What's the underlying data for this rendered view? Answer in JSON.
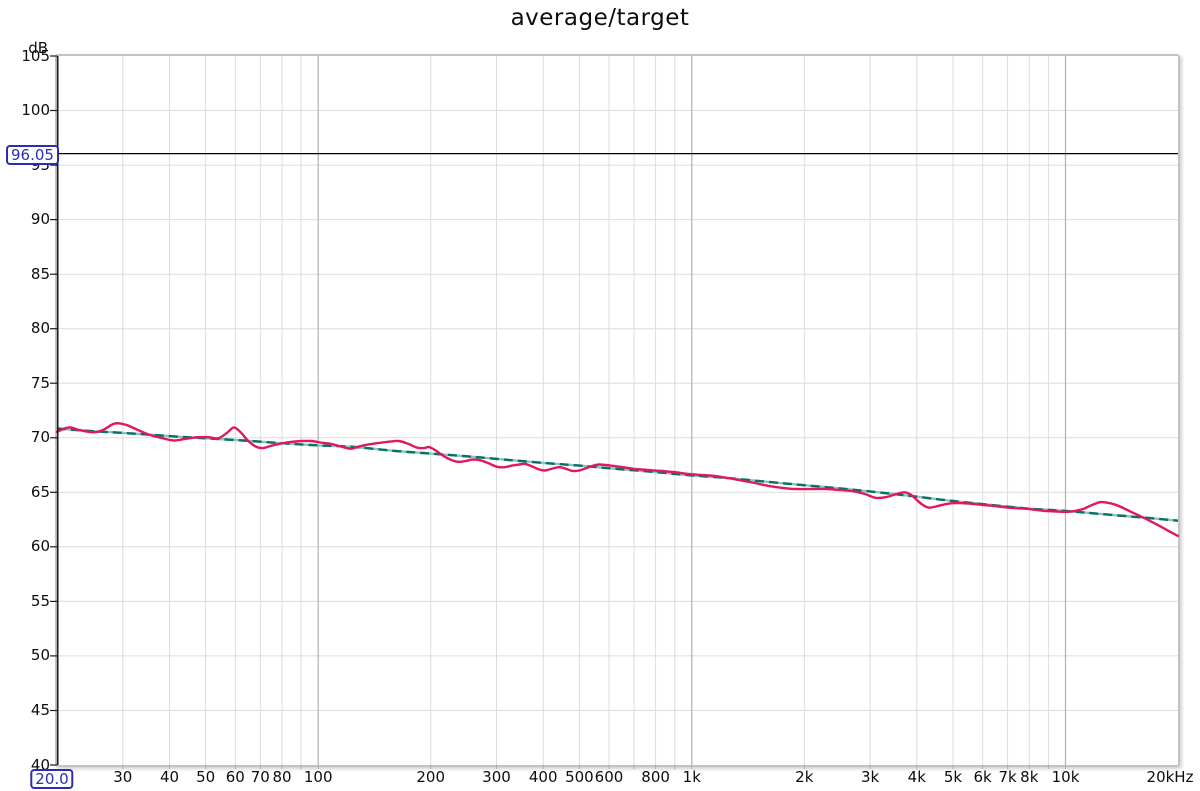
{
  "title": "average/target",
  "y_axis": {
    "unit_label": "dB",
    "ticks": [
      105,
      100,
      95,
      90,
      85,
      80,
      75,
      70,
      65,
      60,
      55,
      50,
      45,
      40
    ]
  },
  "x_axis": {
    "ticks": [
      {
        "f": 20,
        "label": "20.0",
        "boxed": true,
        "dx": -5
      },
      {
        "f": 30,
        "label": "30"
      },
      {
        "f": 40,
        "label": "40"
      },
      {
        "f": 50,
        "label": "50"
      },
      {
        "f": 60,
        "label": "60"
      },
      {
        "f": 70,
        "label": "70"
      },
      {
        "f": 80,
        "label": "80"
      },
      {
        "f": 100,
        "label": "100"
      },
      {
        "f": 200,
        "label": "200"
      },
      {
        "f": 300,
        "label": "300"
      },
      {
        "f": 400,
        "label": "400"
      },
      {
        "f": 500,
        "label": "500"
      },
      {
        "f": 600,
        "label": "600"
      },
      {
        "f": 800,
        "label": "800"
      },
      {
        "f": 1000,
        "label": "1k"
      },
      {
        "f": 2000,
        "label": "2k"
      },
      {
        "f": 3000,
        "label": "3k"
      },
      {
        "f": 4000,
        "label": "4k"
      },
      {
        "f": 5000,
        "label": "5k"
      },
      {
        "f": 6000,
        "label": "6k"
      },
      {
        "f": 7000,
        "label": "7k"
      },
      {
        "f": 8000,
        "label": "8k"
      },
      {
        "f": 10000,
        "label": "10k"
      },
      {
        "f": 20000,
        "label": "20kHz",
        "dx": -8
      }
    ],
    "gridlines_minor": [
      30,
      40,
      50,
      60,
      70,
      80,
      90,
      200,
      300,
      400,
      500,
      600,
      700,
      800,
      900,
      2000,
      3000,
      4000,
      5000,
      6000,
      7000,
      8000,
      9000
    ],
    "gridlines_major": [
      100,
      1000,
      10000
    ]
  },
  "cursor": {
    "y_label": "96.05",
    "y_value": 96.05,
    "x_label": "20.0",
    "x_value": 20.0
  },
  "colors": {
    "average": "#e1175f",
    "target_dark": "#06706a",
    "target_light": "#8fc2bd",
    "grid_minor": "#dcdcdc",
    "grid_major": "#b5b5b5",
    "axis": "#1a1a1a",
    "cursor_line": "#000000",
    "readout_blue": "#2b2bb4"
  },
  "chart_data": {
    "type": "line",
    "title": "average/target",
    "x_scale": "log",
    "x_range_hz": [
      20,
      20000
    ],
    "y_range_db": [
      40,
      105
    ],
    "y_tick_step_db": 5,
    "grid": true,
    "legend": "none",
    "cursor_line_db": 96.05,
    "cursor_freq_hz": 20.0,
    "series": [
      {
        "name": "average",
        "color": "#e1175f",
        "points": [
          [
            20,
            70.55
          ],
          [
            21.5,
            70.95
          ],
          [
            23,
            70.7
          ],
          [
            25,
            70.5
          ],
          [
            26.5,
            70.7
          ],
          [
            28.5,
            71.3
          ],
          [
            30.5,
            71.2
          ],
          [
            33,
            70.7
          ],
          [
            35.5,
            70.25
          ],
          [
            38,
            70.0
          ],
          [
            41,
            69.75
          ],
          [
            44,
            69.9
          ],
          [
            47.5,
            70.05
          ],
          [
            51,
            70.05
          ],
          [
            54,
            69.95
          ],
          [
            57,
            70.45
          ],
          [
            59.5,
            70.95
          ],
          [
            62,
            70.5
          ],
          [
            65,
            69.7
          ],
          [
            68,
            69.2
          ],
          [
            71,
            69.05
          ],
          [
            74.5,
            69.25
          ],
          [
            79,
            69.45
          ],
          [
            84,
            69.6
          ],
          [
            90,
            69.7
          ],
          [
            96,
            69.7
          ],
          [
            102,
            69.55
          ],
          [
            108,
            69.45
          ],
          [
            115,
            69.2
          ],
          [
            122,
            69.0
          ],
          [
            130,
            69.25
          ],
          [
            140,
            69.45
          ],
          [
            152,
            69.6
          ],
          [
            164,
            69.7
          ],
          [
            174,
            69.45
          ],
          [
            184,
            69.1
          ],
          [
            192,
            69.05
          ],
          [
            198,
            69.15
          ],
          [
            206,
            68.85
          ],
          [
            216,
            68.35
          ],
          [
            226,
            68.0
          ],
          [
            236,
            67.8
          ],
          [
            247,
            67.85
          ],
          [
            258,
            68.0
          ],
          [
            270,
            67.95
          ],
          [
            284,
            67.7
          ],
          [
            300,
            67.35
          ],
          [
            315,
            67.3
          ],
          [
            330,
            67.45
          ],
          [
            345,
            67.55
          ],
          [
            358,
            67.6
          ],
          [
            375,
            67.35
          ],
          [
            390,
            67.1
          ],
          [
            404,
            67.0
          ],
          [
            420,
            67.15
          ],
          [
            443,
            67.3
          ],
          [
            465,
            67.1
          ],
          [
            480,
            66.95
          ],
          [
            500,
            67.0
          ],
          [
            520,
            67.2
          ],
          [
            545,
            67.45
          ],
          [
            565,
            67.55
          ],
          [
            590,
            67.5
          ],
          [
            620,
            67.4
          ],
          [
            655,
            67.3
          ],
          [
            700,
            67.15
          ],
          [
            760,
            67.05
          ],
          [
            830,
            66.95
          ],
          [
            900,
            66.85
          ],
          [
            1000,
            66.65
          ],
          [
            1150,
            66.5
          ],
          [
            1300,
            66.2
          ],
          [
            1450,
            65.9
          ],
          [
            1600,
            65.6
          ],
          [
            1750,
            65.4
          ],
          [
            1900,
            65.3
          ],
          [
            2100,
            65.3
          ],
          [
            2300,
            65.3
          ],
          [
            2500,
            65.2
          ],
          [
            2700,
            65.1
          ],
          [
            2900,
            64.85
          ],
          [
            3100,
            64.5
          ],
          [
            3300,
            64.55
          ],
          [
            3500,
            64.8
          ],
          [
            3700,
            65.0
          ],
          [
            3850,
            64.8
          ],
          [
            4000,
            64.3
          ],
          [
            4150,
            63.85
          ],
          [
            4300,
            63.6
          ],
          [
            4500,
            63.7
          ],
          [
            4750,
            63.9
          ],
          [
            5000,
            64.0
          ],
          [
            5300,
            64.0
          ],
          [
            5600,
            63.95
          ],
          [
            6000,
            63.85
          ],
          [
            6400,
            63.75
          ],
          [
            6800,
            63.65
          ],
          [
            7300,
            63.55
          ],
          [
            7800,
            63.5
          ],
          [
            8300,
            63.4
          ],
          [
            8800,
            63.3
          ],
          [
            9400,
            63.25
          ],
          [
            10000,
            63.2
          ],
          [
            10600,
            63.3
          ],
          [
            11200,
            63.5
          ],
          [
            11800,
            63.85
          ],
          [
            12400,
            64.1
          ],
          [
            12900,
            64.05
          ],
          [
            13500,
            63.9
          ],
          [
            14200,
            63.6
          ],
          [
            15000,
            63.2
          ],
          [
            16000,
            62.75
          ],
          [
            17000,
            62.3
          ],
          [
            18000,
            61.85
          ],
          [
            19000,
            61.4
          ],
          [
            20000,
            61.0
          ]
        ]
      },
      {
        "name": "target",
        "color": "#06706a",
        "points": [
          [
            20,
            70.85
          ],
          [
            25,
            70.6
          ],
          [
            31.5,
            70.4
          ],
          [
            40,
            70.15
          ],
          [
            50,
            69.95
          ],
          [
            63,
            69.75
          ],
          [
            80,
            69.5
          ],
          [
            100,
            69.3
          ],
          [
            125,
            69.15
          ],
          [
            160,
            68.8
          ],
          [
            200,
            68.55
          ],
          [
            250,
            68.3
          ],
          [
            315,
            68.0
          ],
          [
            400,
            67.7
          ],
          [
            500,
            67.45
          ],
          [
            630,
            67.15
          ],
          [
            800,
            66.85
          ],
          [
            1000,
            66.55
          ],
          [
            1250,
            66.3
          ],
          [
            1600,
            65.95
          ],
          [
            2000,
            65.65
          ],
          [
            2500,
            65.35
          ],
          [
            3150,
            65.0
          ],
          [
            4000,
            64.6
          ],
          [
            5000,
            64.2
          ],
          [
            6300,
            63.85
          ],
          [
            8000,
            63.5
          ],
          [
            10000,
            63.3
          ],
          [
            12500,
            63.0
          ],
          [
            16000,
            62.7
          ],
          [
            20000,
            62.4
          ]
        ]
      }
    ]
  }
}
